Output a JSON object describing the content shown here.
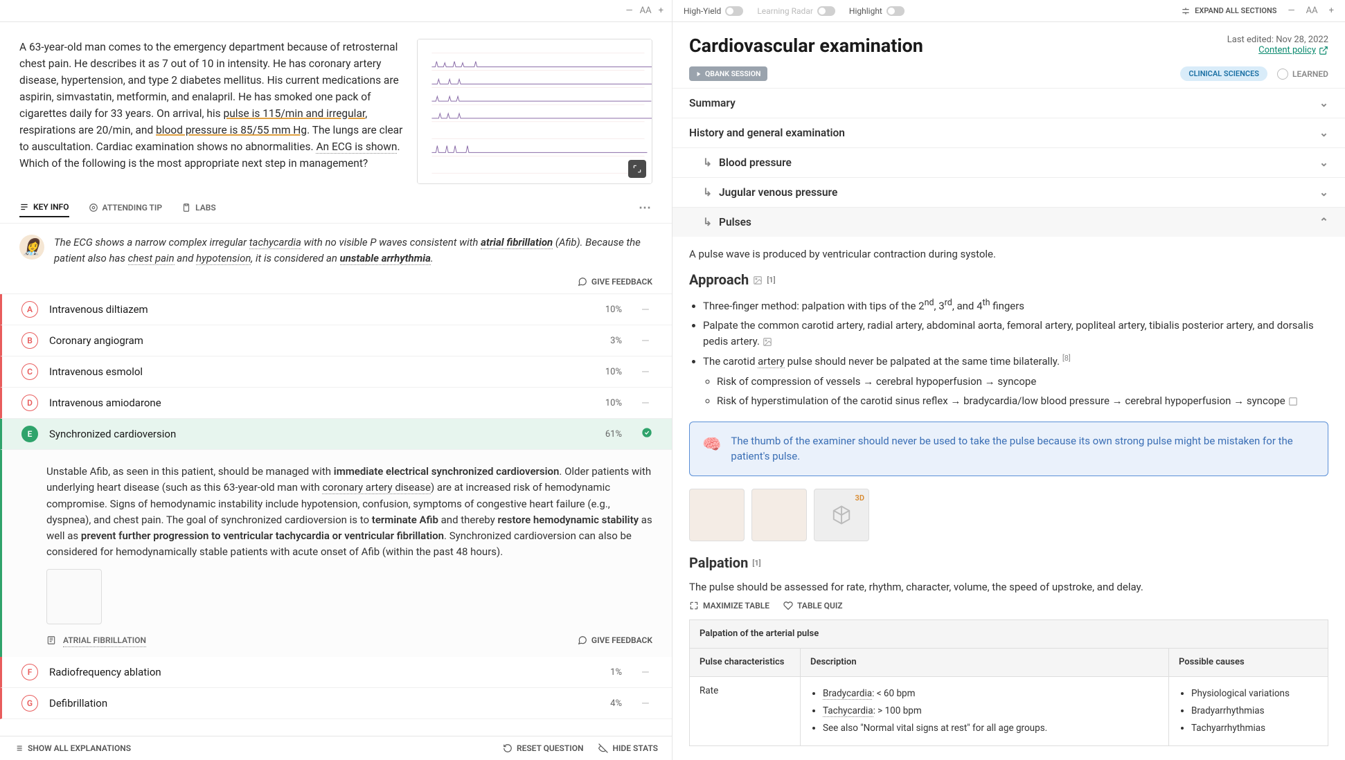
{
  "left": {
    "font_controls": {
      "minus": "—",
      "aa": "AA",
      "plus": "+"
    },
    "question_html": "A 63-year-old man comes to the emergency department because of retrosternal chest pain. He describes it as 7 out of 10 in intensity. He has coronary artery disease, hypertension, and type 2 diabetes mellitus. His current medications are aspirin, simvastatin, metformin, and enalapril. He has smoked one pack of cigarettes daily for 33 years. On arrival, his ",
    "pulse_span": "pulse is 115/min and irregular",
    "q_mid1": ", respirations are 20/min, and ",
    "bp_span": "blood pressure is 85/55 mm Hg",
    "q_mid2": ". The lungs are clear to auscultation. Cardiac examination shows no abnormalities. ",
    "ecg_span": "An ECG is shown",
    "q_end": ". Which of the following is the most appropriate next step in management?",
    "tabs": {
      "key_info": "KEY INFO",
      "attending_tip": "ATTENDING TIP",
      "labs": "LABS"
    },
    "key_info_text_1": "The ECG shows a narrow complex irregular ",
    "ki_tachy": "tachycardia",
    "ki_2": " with no visible P waves consistent with ",
    "ki_afib": "atrial fibrillation",
    "ki_3": " (Afib). Because the patient also has ",
    "ki_cp": "chest pain",
    "ki_4": " and ",
    "ki_hypo": "hypotension",
    "ki_5": ", it is considered an ",
    "ki_unstable": "unstable arrhythmia",
    "ki_6": ".",
    "give_feedback": "GIVE FEEDBACK",
    "answers": [
      {
        "letter": "A",
        "text": "Intravenous diltiazem",
        "pct": "10%",
        "correct": false
      },
      {
        "letter": "B",
        "text": "Coronary angiogram",
        "pct": "3%",
        "correct": false
      },
      {
        "letter": "C",
        "text": "Intravenous esmolol",
        "pct": "10%",
        "correct": false
      },
      {
        "letter": "D",
        "text": "Intravenous amiodarone",
        "pct": "10%",
        "correct": false
      },
      {
        "letter": "E",
        "text": "Synchronized cardioversion",
        "pct": "61%",
        "correct": true
      },
      {
        "letter": "F",
        "text": "Radiofrequency ablation",
        "pct": "1%",
        "correct": false
      },
      {
        "letter": "G",
        "text": "Defibrillation",
        "pct": "4%",
        "correct": false
      }
    ],
    "explanation": {
      "p1a": "Unstable Afib, as seen in this patient, should be managed with ",
      "p1b": "immediate electrical synchronized cardioversion",
      "p1c": ". Older patients with underlying heart disease (such as this 63-year-old man with ",
      "p1d": "coronary artery disease",
      "p1e": ") are at increased risk of hemodynamic compromise. Signs of hemodynamic instability include hypotension, confusion, symptoms of congestive heart failure (e.g., dyspnea), and chest pain. The goal of synchronized cardioversion is to ",
      "p1f": "terminate Afib",
      "p1g": " and thereby ",
      "p1h": "restore hemodynamic stability",
      "p1i": " as well as ",
      "p1j": "prevent further progression to ventricular tachycardia or ventricular fibrillation",
      "p1k": ". Synchronized cardioversion can also be considered for hemodynamically stable patients with acute onset of Afib (within the past 48 hours).",
      "related_link": "ATRIAL FIBRILLATION"
    },
    "bottom": {
      "show_all": "SHOW ALL EXPLANATIONS",
      "reset": "RESET QUESTION",
      "hide_stats": "HIDE STATS"
    }
  },
  "right": {
    "top": {
      "high_yield": "High-Yield",
      "learning_radar": "Learning Radar",
      "highlight": "Highlight",
      "expand_all": "EXPAND ALL SECTIONS"
    },
    "title": "Cardiovascular examination",
    "last_edited": "Last edited: Nov 28, 2022",
    "content_policy": "Content policy",
    "qbank_session": "QBANK SESSION",
    "clinical_sciences": "CLINICAL SCIENCES",
    "learned": "LEARNED",
    "sections": {
      "summary": "Summary",
      "history": "History and general examination",
      "bp": "Blood pressure",
      "jvp": "Jugular venous pressure",
      "pulses": "Pulses"
    },
    "pulses_intro": "A pulse wave is produced by ventricular contraction during systole.",
    "approach_heading": "Approach",
    "approach_ref": "[1]",
    "approach_li1a": "Three-finger method: palpation with tips of the 2",
    "approach_li1b": "nd",
    "approach_li1c": ", 3",
    "approach_li1d": "rd",
    "approach_li1e": ", and 4",
    "approach_li1f": "th",
    "approach_li1g": " fingers",
    "approach_li2": "Palpate the common carotid artery, radial artery, abdominal aorta, femoral artery, popliteal artery, tibialis posterior artery, and dorsalis pedis artery.",
    "approach_li3a": "The carotid ",
    "approach_li3_artery": "artery",
    "approach_li3b": " pulse should never be palpated at the same time bilaterally.",
    "approach_li3_ref": "[8]",
    "approach_sub1": "Risk of compression of vessels → cerebral hypoperfusion → syncope",
    "approach_sub2": "Risk of hyperstimulation of the carotid sinus reflex → bradycardia/low blood pressure → cerebral hypoperfusion → syncope",
    "callout": "The thumb of the examiner should never be used to take the pulse because its own strong pulse might be mistaken for the patient's pulse.",
    "palpation_heading": "Palpation",
    "palpation_ref": "[1]",
    "palpation_intro": "The pulse should be assessed for rate, rhythm, character, volume, the speed of upstroke, and delay.",
    "maximize_table": "MAXIMIZE TABLE",
    "table_quiz": "TABLE QUIZ",
    "table": {
      "title": "Palpation of the arterial pulse",
      "col1": "Pulse characteristics",
      "col2": "Description",
      "col3": "Possible causes",
      "row1_char": "Rate",
      "row1_desc": [
        "Bradycardia: < 60 bpm",
        "Tachycardia: > 100 bpm",
        "See also \"Normal vital signs at rest\" for all age groups."
      ],
      "row1_causes": [
        "Physiological variations",
        "Bradyarrhythmias",
        "Tachyarrhythmias"
      ]
    }
  }
}
